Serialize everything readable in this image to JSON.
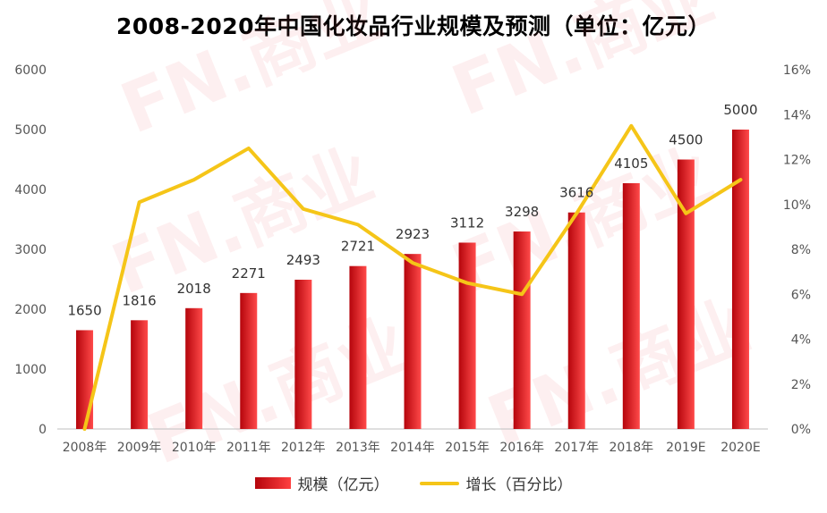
{
  "title": "2008-2020年中国化妆品行业规模及预测（单位：亿元）",
  "watermark": "FN.商业",
  "colors": {
    "bar_dark": "#b5050c",
    "bar_light": "#ff4a4a",
    "line": "#f5c518",
    "axis": "#bfbfbf",
    "watermark": "#f0565f"
  },
  "chart_data": {
    "type": "bar",
    "categories": [
      "2008年",
      "2009年",
      "2010年",
      "2011年",
      "2012年",
      "2013年",
      "2014年",
      "2015年",
      "2016年",
      "2017年",
      "2018年",
      "2019E",
      "2020E"
    ],
    "series": [
      {
        "name": "规模（亿元）",
        "type": "bar",
        "axis": "left",
        "values": [
          1650,
          1816,
          2018,
          2271,
          2493,
          2721,
          2923,
          3112,
          3298,
          3616,
          4105,
          4500,
          5000
        ],
        "labels": [
          "1650",
          "1816",
          "2018",
          "2271",
          "2493",
          "2721",
          "2923",
          "3112",
          "3298",
          "3616",
          "4105",
          "4500",
          "5000"
        ]
      },
      {
        "name": "增长（百分比）",
        "type": "line",
        "axis": "right",
        "values": [
          0,
          10.1,
          11.1,
          12.5,
          9.8,
          9.1,
          7.4,
          6.5,
          6.0,
          9.6,
          13.5,
          9.6,
          11.1
        ]
      }
    ],
    "y_left": {
      "min": 0,
      "max": 6000,
      "ticks": [
        "0",
        "1000",
        "2000",
        "3000",
        "4000",
        "5000",
        "6000"
      ]
    },
    "y_right": {
      "min": 0,
      "max": 16,
      "ticks": [
        "0%",
        "2%",
        "4%",
        "6%",
        "8%",
        "10%",
        "12%",
        "14%",
        "16%"
      ]
    },
    "grid": false,
    "legend_position": "bottom"
  },
  "legend": {
    "bar_label": "规模（亿元）",
    "line_label": "增长（百分比）"
  }
}
